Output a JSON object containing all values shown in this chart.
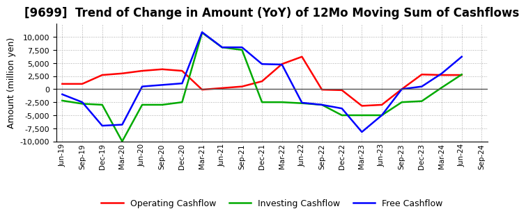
{
  "title": "[9699]  Trend of Change in Amount (YoY) of 12Mo Moving Sum of Cashflows",
  "ylabel": "Amount (million yen)",
  "x_labels": [
    "Jun-19",
    "Sep-19",
    "Dec-19",
    "Mar-20",
    "Jun-20",
    "Sep-20",
    "Dec-20",
    "Mar-21",
    "Jun-21",
    "Sep-21",
    "Dec-21",
    "Mar-22",
    "Jun-22",
    "Sep-22",
    "Dec-22",
    "Mar-23",
    "Jun-23",
    "Sep-23",
    "Dec-23",
    "Mar-24",
    "Jun-24",
    "Sep-24"
  ],
  "operating": [
    1000,
    1000,
    2700,
    3000,
    3500,
    3800,
    3500,
    -100,
    200,
    500,
    1500,
    4800,
    6200,
    -100,
    -200,
    -3200,
    -3000,
    0,
    2800,
    2700,
    2700,
    null
  ],
  "investing": [
    -2200,
    -2800,
    -3000,
    -10000,
    -3000,
    -3000,
    -2500,
    10800,
    8000,
    7500,
    -2500,
    -2500,
    -2700,
    -3000,
    -5000,
    -5000,
    -5000,
    -2500,
    -2300,
    300,
    2800,
    null
  ],
  "free": [
    -1000,
    -2500,
    -7000,
    -6800,
    500,
    800,
    1100,
    10900,
    8000,
    8000,
    4800,
    4700,
    -2600,
    -3000,
    -3700,
    -8200,
    -5000,
    0,
    500,
    3000,
    6200,
    null
  ],
  "ylim": [
    -10000,
    12500
  ],
  "yticks": [
    -10000,
    -7500,
    -5000,
    -2500,
    0,
    2500,
    5000,
    7500,
    10000
  ],
  "operating_color": "#ff0000",
  "investing_color": "#00aa00",
  "free_color": "#0000ff",
  "bg_color": "#ffffff",
  "grid_color": "#aaaaaa",
  "title_fontsize": 12,
  "legend_labels": [
    "Operating Cashflow",
    "Investing Cashflow",
    "Free Cashflow"
  ]
}
